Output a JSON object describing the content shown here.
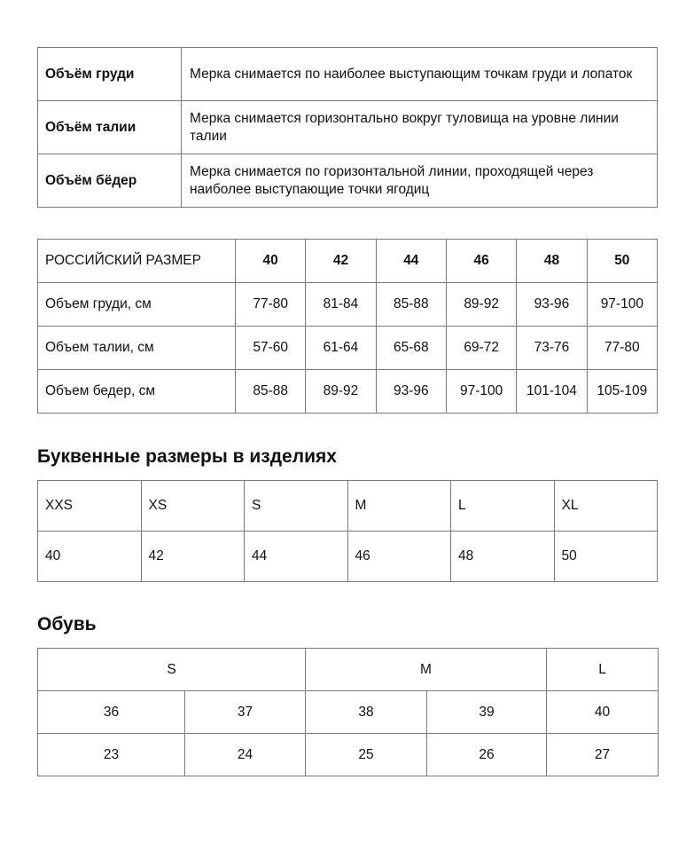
{
  "measurements": [
    {
      "label": "Объём груди",
      "desc": "Мерка снимается по наиболее выступающим точкам груди и лопаток"
    },
    {
      "label": "Объём талии",
      "desc": "Мерка снимается горизонтально вокруг туловища на уровне линии талии"
    },
    {
      "label": "Объём бёдер",
      "desc": "Мерка снимается по горизонтальной линии, проходящей через наиболее выступающие точки ягодиц"
    }
  ],
  "size_table": {
    "header": [
      "РОССИЙСКИЙ РАЗМЕР",
      "40",
      "42",
      "44",
      "46",
      "48",
      "50"
    ],
    "rows": [
      [
        "Объем груди, см",
        "77-80",
        "81-84",
        "85-88",
        "89-92",
        "93-96",
        "97-100"
      ],
      [
        "Объем талии, см",
        "57-60",
        "61-64",
        "65-68",
        "69-72",
        "73-76",
        "77-80"
      ],
      [
        "Объем бедер, см",
        "85-88",
        "89-92",
        "93-96",
        "97-100",
        "101-104",
        "105-109"
      ]
    ]
  },
  "letter_sizes": {
    "title": "Буквенные размеры в изделиях",
    "letters": [
      "XXS",
      "XS",
      "S",
      "M",
      "L",
      "XL"
    ],
    "numbers": [
      "40",
      "42",
      "44",
      "46",
      "48",
      "50"
    ]
  },
  "shoes": {
    "title": "Обувь",
    "groups": [
      "S",
      "M",
      "L"
    ],
    "row1": [
      "36",
      "37",
      "38",
      "39",
      "40"
    ],
    "row2": [
      "23",
      "24",
      "25",
      "26",
      "27"
    ]
  }
}
